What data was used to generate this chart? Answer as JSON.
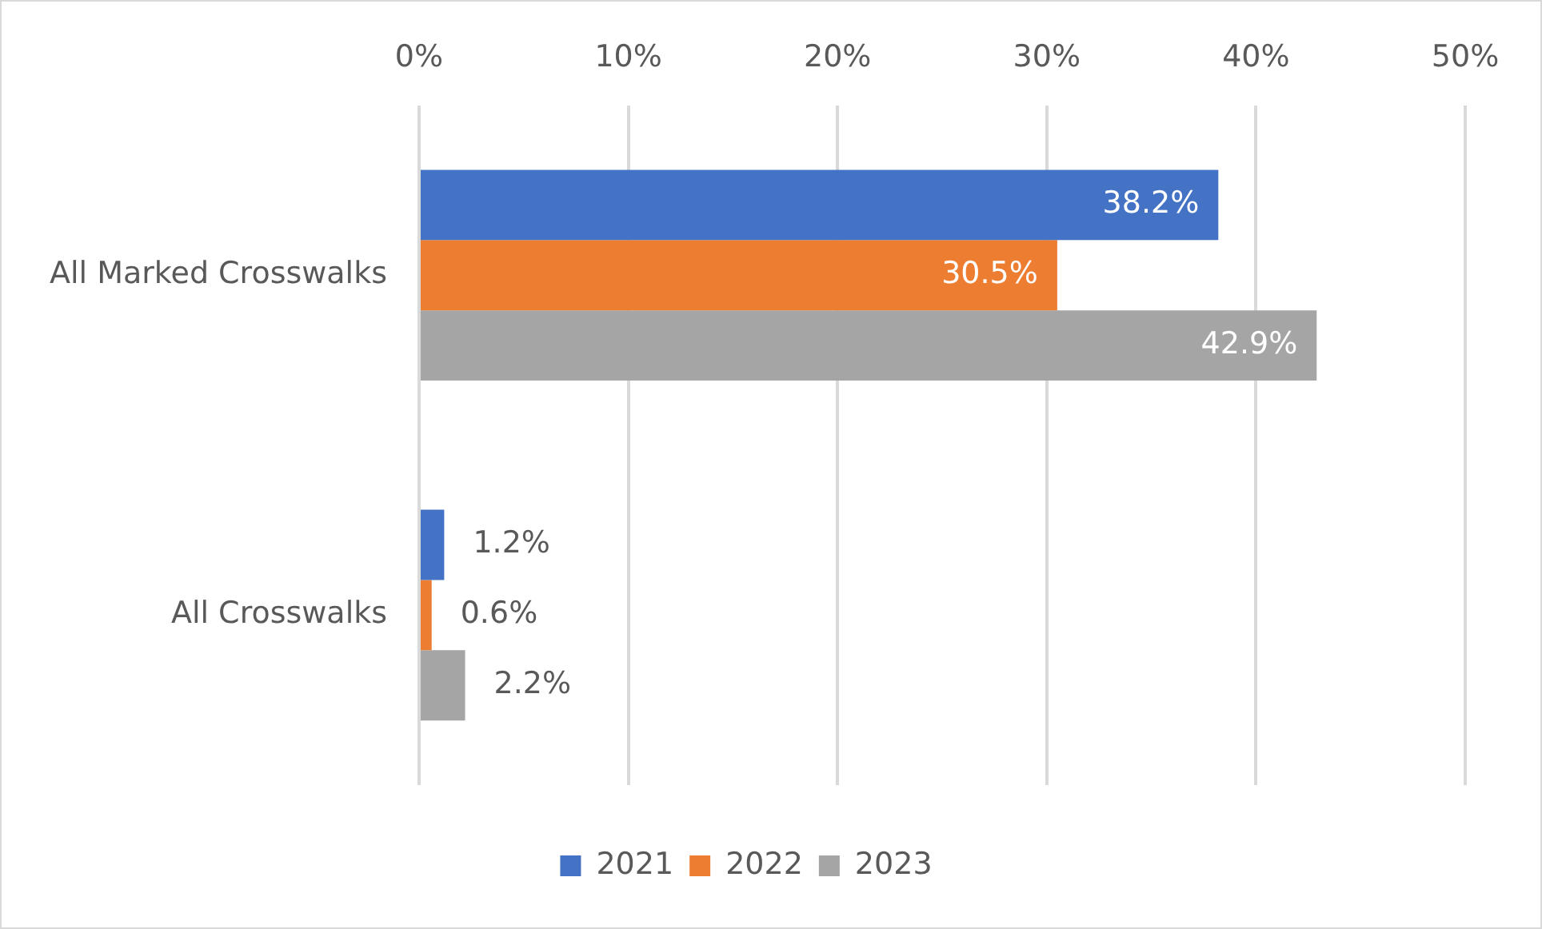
{
  "chart_data": {
    "type": "bar",
    "orientation": "horizontal",
    "categories": [
      "All Marked Crosswalks",
      "All Crosswalks"
    ],
    "series": [
      {
        "name": "2021",
        "color": "#4472c4",
        "values": [
          38.2,
          1.2
        ],
        "value_labels": [
          "38.2%",
          "1.2%"
        ]
      },
      {
        "name": "2022",
        "color": "#ed7d31",
        "values": [
          30.5,
          0.6
        ],
        "value_labels": [
          "30.5%",
          "0.6%"
        ]
      },
      {
        "name": "2023",
        "color": "#a5a5a5",
        "values": [
          42.9,
          2.2
        ],
        "value_labels": [
          "42.9%",
          "2.2%"
        ]
      }
    ],
    "xlim": [
      0,
      50
    ],
    "xticks": [
      {
        "value": 0,
        "label": "0%"
      },
      {
        "value": 10,
        "label": "10%"
      },
      {
        "value": 20,
        "label": "20%"
      },
      {
        "value": 30,
        "label": "30%"
      },
      {
        "value": 40,
        "label": "40%"
      },
      {
        "value": 50,
        "label": "50%"
      }
    ],
    "grid": "x",
    "legend": "bottom"
  }
}
